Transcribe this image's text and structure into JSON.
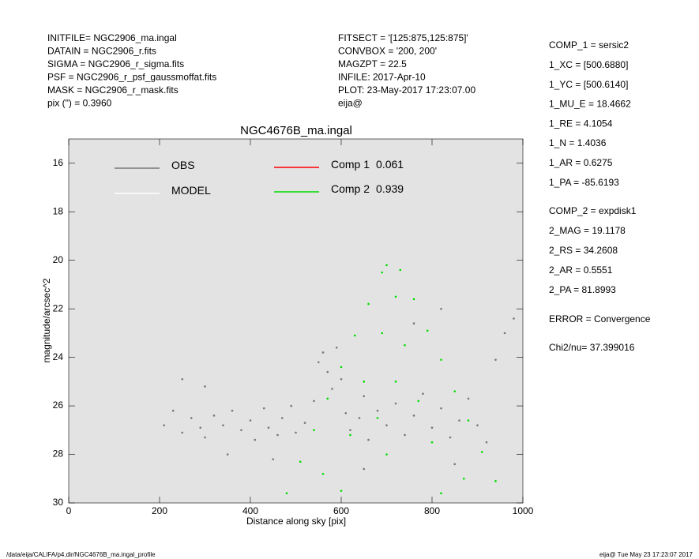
{
  "header": {
    "left": [
      "INITFILE= NGC2906_ma.ingal",
      "DATAIN  = NGC2906_r.fits",
      "SIGMA  = NGC2906_r_sigma.fits",
      "PSF    = NGC2906_r_psf_gaussmoffat.fits",
      "MASK   = NGC2906_r_mask.fits",
      "pix (\") =  0.3960"
    ],
    "middle": [
      "FITSECT = '[125:875,125:875]'",
      "CONVBOX = '200, 200'",
      "MAGZPT =          22.5",
      "INFILE: 2017-Apr-10",
      "PLOT: 23-May-2017 17:23:07.00",
      "eija@"
    ]
  },
  "params": {
    "comp1": [
      "COMP_1  = sersic2",
      "1_XC    = [500.6880]",
      "1_YC    = [500.6140]",
      "1_MU_E  = 18.4662",
      "1_RE    = 4.1054",
      "1_N     = 1.4036",
      "1_AR    = 0.6275",
      "1_PA    = -85.6193"
    ],
    "comp2": [
      "COMP_2  = expdisk1",
      "2_MAG   = 19.1178",
      "2_RS    = 34.2608",
      "2_AR    = 0.5551",
      "2_PA    = 81.8993"
    ],
    "error": "ERROR   = Convergence",
    "chi2": "Chi2/nu=      37.399016"
  },
  "footer": {
    "left": "/data/eija/CALIFA/p4.dir/NGC4676B_ma.ingal_profile",
    "right": "eija@  Tue May 23 17:23:07 2017"
  },
  "chart_data": {
    "type": "scatter",
    "title": "NGC4676B_ma.ingal",
    "xlabel": "Distance along sky [pix]",
    "ylabel": "magnitude/arcsec^2",
    "xlim": [
      0,
      1000
    ],
    "ylim": [
      30,
      15
    ],
    "xticks": [
      0,
      200,
      400,
      600,
      800,
      1000
    ],
    "yticks": [
      16,
      18,
      20,
      22,
      24,
      26,
      28,
      30
    ],
    "grid": false,
    "series": [
      {
        "name": "OBS",
        "color": "#777777",
        "x": [
          210,
          230,
          250,
          270,
          290,
          300,
          320,
          340,
          360,
          380,
          400,
          410,
          430,
          440,
          460,
          470,
          490,
          500,
          520,
          540,
          550,
          560,
          570,
          580,
          590,
          600,
          610,
          620,
          640,
          650,
          660,
          680,
          700,
          720,
          740,
          760,
          780,
          800,
          820,
          840,
          860,
          880,
          900,
          920,
          940,
          960,
          980,
          760,
          820,
          300,
          250,
          450,
          650,
          850,
          350
        ],
        "values": [
          26.8,
          26.2,
          27.1,
          26.5,
          26.9,
          27.3,
          26.4,
          26.8,
          26.2,
          27.0,
          26.6,
          27.4,
          26.1,
          26.9,
          27.2,
          26.5,
          26.0,
          27.1,
          26.7,
          25.8,
          24.2,
          23.8,
          24.6,
          25.3,
          23.6,
          24.9,
          26.3,
          27.0,
          26.5,
          25.6,
          27.4,
          26.2,
          26.8,
          25.9,
          27.2,
          26.4,
          25.5,
          26.9,
          26.1,
          27.3,
          26.6,
          25.7,
          26.8,
          27.5,
          24.1,
          23.0,
          22.4,
          22.6,
          22.0,
          25.2,
          24.9,
          28.2,
          28.6,
          28.4,
          28.0
        ]
      },
      {
        "name": "MODEL",
        "color": "#ffffff"
      },
      {
        "name": "Comp 1",
        "fraction": 0.061,
        "color": "#ff0000"
      },
      {
        "name": "Comp 2",
        "fraction": 0.939,
        "color": "#00dd00",
        "x": [
          480,
          510,
          540,
          570,
          600,
          630,
          660,
          690,
          730,
          760,
          790,
          820,
          850,
          880,
          910,
          940,
          700,
          720,
          690,
          740,
          650,
          770,
          620,
          800,
          560,
          870,
          700,
          600,
          820,
          720,
          680
        ],
        "values": [
          29.6,
          28.3,
          27.0,
          25.7,
          24.4,
          23.1,
          21.8,
          20.5,
          20.4,
          21.6,
          22.9,
          24.1,
          25.4,
          26.6,
          27.9,
          29.1,
          20.2,
          21.5,
          23.0,
          23.5,
          25.0,
          25.8,
          27.2,
          27.5,
          28.8,
          29.0,
          28.0,
          29.5,
          29.6,
          25.0,
          26.5
        ]
      }
    ]
  }
}
